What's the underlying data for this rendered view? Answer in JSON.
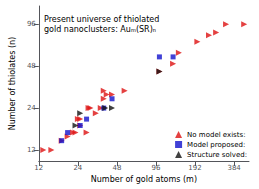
{
  "chart_data": {
    "type": "scatter",
    "title": "Present universe of thiolated\ngold nanoclusters: Auₘ(SR)ₙ",
    "xlabel": "Number of gold atoms (m)",
    "ylabel": "Number of thiolates (n)",
    "log": true,
    "xlim": [
      12,
      500
    ],
    "ylim": [
      10,
      130
    ],
    "xticks": [
      12,
      24,
      48,
      96,
      192,
      384
    ],
    "yticks": [
      12,
      24,
      48,
      96
    ],
    "grid": false,
    "legend": "lower right",
    "series": [
      {
        "name": "No model exists:",
        "color": "#dd1111",
        "marker": "triangle-right",
        "values": [
          [
            13,
            12
          ],
          [
            15,
            12
          ],
          [
            18,
            14
          ],
          [
            20,
            15
          ],
          [
            22,
            16
          ],
          [
            23,
            16
          ],
          [
            24,
            20
          ],
          [
            25,
            18
          ],
          [
            28,
            16
          ],
          [
            25,
            20
          ],
          [
            29,
            24
          ],
          [
            30,
            24
          ],
          [
            33,
            22
          ],
          [
            36,
            24
          ],
          [
            38,
            28
          ],
          [
            38,
            32
          ],
          [
            40,
            30
          ],
          [
            44,
            30
          ],
          [
            55,
            32
          ],
          [
            102,
            44
          ],
          [
            130,
            50
          ],
          [
            144,
            60
          ],
          [
            200,
            72
          ],
          [
            246,
            80
          ],
          [
            279,
            84
          ],
          [
            333,
            96
          ],
          [
            459,
            96
          ]
        ]
      },
      {
        "name": "Model proposed:",
        "color": "#1111cc",
        "marker": "square",
        "values": [
          [
            18,
            14
          ],
          [
            20,
            16
          ],
          [
            25,
            18
          ],
          [
            28,
            20
          ],
          [
            38,
            24
          ],
          [
            44,
            28
          ],
          [
            102,
            56
          ],
          [
            130,
            56
          ]
        ]
      },
      {
        "name": "Structure solved:",
        "color": "#111111",
        "marker": "triangle-right",
        "values": [
          [
            23,
            18
          ],
          [
            25,
            22
          ],
          [
            39,
            24
          ],
          [
            44,
            24
          ],
          [
            102,
            44
          ]
        ]
      }
    ]
  }
}
